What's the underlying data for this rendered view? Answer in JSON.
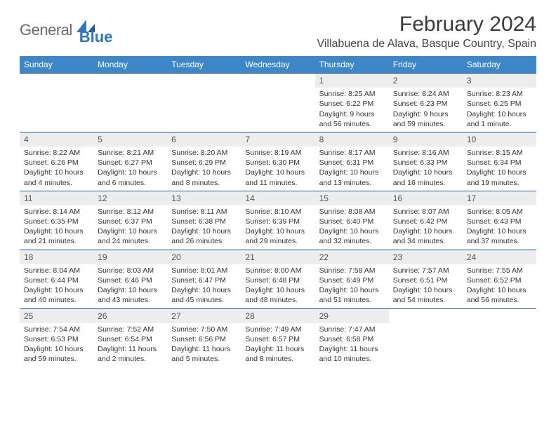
{
  "brand": {
    "word1": "General",
    "word2": "Blue",
    "accent_color": "#2f77bd"
  },
  "title": "February 2024",
  "location": "Villabuena de Alava, Basque Country, Spain",
  "header_bg": "#3d87c9",
  "rule_color": "#2f5a8a",
  "daynum_bg": "#ededed",
  "dow": [
    "Sunday",
    "Monday",
    "Tuesday",
    "Wednesday",
    "Thursday",
    "Friday",
    "Saturday"
  ],
  "weeks": [
    [
      {
        "n": "",
        "sr": "",
        "ss": "",
        "dl": ""
      },
      {
        "n": "",
        "sr": "",
        "ss": "",
        "dl": ""
      },
      {
        "n": "",
        "sr": "",
        "ss": "",
        "dl": ""
      },
      {
        "n": "",
        "sr": "",
        "ss": "",
        "dl": ""
      },
      {
        "n": "1",
        "sr": "Sunrise: 8:25 AM",
        "ss": "Sunset: 6:22 PM",
        "dl": "Daylight: 9 hours and 56 minutes."
      },
      {
        "n": "2",
        "sr": "Sunrise: 8:24 AM",
        "ss": "Sunset: 6:23 PM",
        "dl": "Daylight: 9 hours and 59 minutes."
      },
      {
        "n": "3",
        "sr": "Sunrise: 8:23 AM",
        "ss": "Sunset: 6:25 PM",
        "dl": "Daylight: 10 hours and 1 minute."
      }
    ],
    [
      {
        "n": "4",
        "sr": "Sunrise: 8:22 AM",
        "ss": "Sunset: 6:26 PM",
        "dl": "Daylight: 10 hours and 4 minutes."
      },
      {
        "n": "5",
        "sr": "Sunrise: 8:21 AM",
        "ss": "Sunset: 6:27 PM",
        "dl": "Daylight: 10 hours and 6 minutes."
      },
      {
        "n": "6",
        "sr": "Sunrise: 8:20 AM",
        "ss": "Sunset: 6:29 PM",
        "dl": "Daylight: 10 hours and 8 minutes."
      },
      {
        "n": "7",
        "sr": "Sunrise: 8:19 AM",
        "ss": "Sunset: 6:30 PM",
        "dl": "Daylight: 10 hours and 11 minutes."
      },
      {
        "n": "8",
        "sr": "Sunrise: 8:17 AM",
        "ss": "Sunset: 6:31 PM",
        "dl": "Daylight: 10 hours and 13 minutes."
      },
      {
        "n": "9",
        "sr": "Sunrise: 8:16 AM",
        "ss": "Sunset: 6:33 PM",
        "dl": "Daylight: 10 hours and 16 minutes."
      },
      {
        "n": "10",
        "sr": "Sunrise: 8:15 AM",
        "ss": "Sunset: 6:34 PM",
        "dl": "Daylight: 10 hours and 19 minutes."
      }
    ],
    [
      {
        "n": "11",
        "sr": "Sunrise: 8:14 AM",
        "ss": "Sunset: 6:35 PM",
        "dl": "Daylight: 10 hours and 21 minutes."
      },
      {
        "n": "12",
        "sr": "Sunrise: 8:12 AM",
        "ss": "Sunset: 6:37 PM",
        "dl": "Daylight: 10 hours and 24 minutes."
      },
      {
        "n": "13",
        "sr": "Sunrise: 8:11 AM",
        "ss": "Sunset: 6:38 PM",
        "dl": "Daylight: 10 hours and 26 minutes."
      },
      {
        "n": "14",
        "sr": "Sunrise: 8:10 AM",
        "ss": "Sunset: 6:39 PM",
        "dl": "Daylight: 10 hours and 29 minutes."
      },
      {
        "n": "15",
        "sr": "Sunrise: 8:08 AM",
        "ss": "Sunset: 6:40 PM",
        "dl": "Daylight: 10 hours and 32 minutes."
      },
      {
        "n": "16",
        "sr": "Sunrise: 8:07 AM",
        "ss": "Sunset: 6:42 PM",
        "dl": "Daylight: 10 hours and 34 minutes."
      },
      {
        "n": "17",
        "sr": "Sunrise: 8:05 AM",
        "ss": "Sunset: 6:43 PM",
        "dl": "Daylight: 10 hours and 37 minutes."
      }
    ],
    [
      {
        "n": "18",
        "sr": "Sunrise: 8:04 AM",
        "ss": "Sunset: 6:44 PM",
        "dl": "Daylight: 10 hours and 40 minutes."
      },
      {
        "n": "19",
        "sr": "Sunrise: 8:03 AM",
        "ss": "Sunset: 6:46 PM",
        "dl": "Daylight: 10 hours and 43 minutes."
      },
      {
        "n": "20",
        "sr": "Sunrise: 8:01 AM",
        "ss": "Sunset: 6:47 PM",
        "dl": "Daylight: 10 hours and 45 minutes."
      },
      {
        "n": "21",
        "sr": "Sunrise: 8:00 AM",
        "ss": "Sunset: 6:48 PM",
        "dl": "Daylight: 10 hours and 48 minutes."
      },
      {
        "n": "22",
        "sr": "Sunrise: 7:58 AM",
        "ss": "Sunset: 6:49 PM",
        "dl": "Daylight: 10 hours and 51 minutes."
      },
      {
        "n": "23",
        "sr": "Sunrise: 7:57 AM",
        "ss": "Sunset: 6:51 PM",
        "dl": "Daylight: 10 hours and 54 minutes."
      },
      {
        "n": "24",
        "sr": "Sunrise: 7:55 AM",
        "ss": "Sunset: 6:52 PM",
        "dl": "Daylight: 10 hours and 56 minutes."
      }
    ],
    [
      {
        "n": "25",
        "sr": "Sunrise: 7:54 AM",
        "ss": "Sunset: 6:53 PM",
        "dl": "Daylight: 10 hours and 59 minutes."
      },
      {
        "n": "26",
        "sr": "Sunrise: 7:52 AM",
        "ss": "Sunset: 6:54 PM",
        "dl": "Daylight: 11 hours and 2 minutes."
      },
      {
        "n": "27",
        "sr": "Sunrise: 7:50 AM",
        "ss": "Sunset: 6:56 PM",
        "dl": "Daylight: 11 hours and 5 minutes."
      },
      {
        "n": "28",
        "sr": "Sunrise: 7:49 AM",
        "ss": "Sunset: 6:57 PM",
        "dl": "Daylight: 11 hours and 8 minutes."
      },
      {
        "n": "29",
        "sr": "Sunrise: 7:47 AM",
        "ss": "Sunset: 6:58 PM",
        "dl": "Daylight: 11 hours and 10 minutes."
      },
      {
        "n": "",
        "sr": "",
        "ss": "",
        "dl": ""
      },
      {
        "n": "",
        "sr": "",
        "ss": "",
        "dl": ""
      }
    ]
  ]
}
